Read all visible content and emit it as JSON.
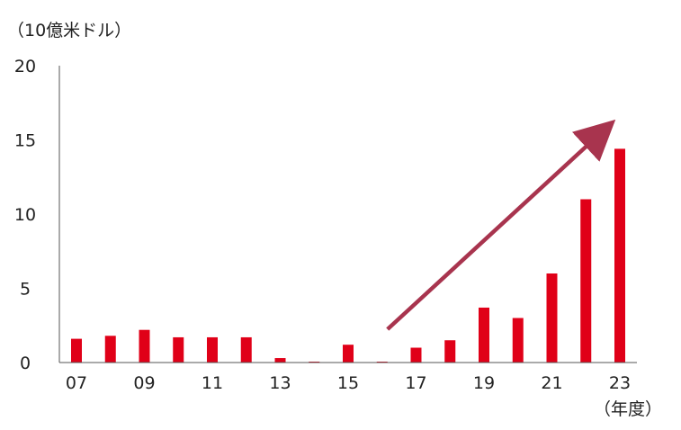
{
  "chart_data": {
    "type": "bar",
    "ylabel": "（10億米ドル）",
    "xlabel": "（年度）",
    "ylim": [
      0,
      20
    ],
    "yticks": [
      0,
      5,
      10,
      15,
      20
    ],
    "grid": false,
    "legend": "none",
    "categories": [
      "07",
      "08",
      "09",
      "10",
      "11",
      "12",
      "13",
      "14",
      "15",
      "16",
      "17",
      "18",
      "19",
      "20",
      "21",
      "22",
      "23"
    ],
    "x_tick_labels": [
      "07",
      "",
      "09",
      "",
      "11",
      "",
      "13",
      "",
      "15",
      "",
      "17",
      "",
      "19",
      "",
      "21",
      "",
      "23"
    ],
    "values": [
      1.6,
      1.8,
      2.2,
      1.7,
      1.7,
      1.7,
      0.3,
      0.0,
      1.2,
      0.05,
      1.0,
      1.5,
      3.7,
      3.0,
      6.0,
      11.0,
      14.4
    ],
    "bar_color": "#e00018",
    "annotation": {
      "type": "trend-arrow",
      "color": "#a8344e",
      "from": {
        "x": "16",
        "y": 2.0
      },
      "to": {
        "x": "23",
        "y": 16.0
      }
    }
  }
}
